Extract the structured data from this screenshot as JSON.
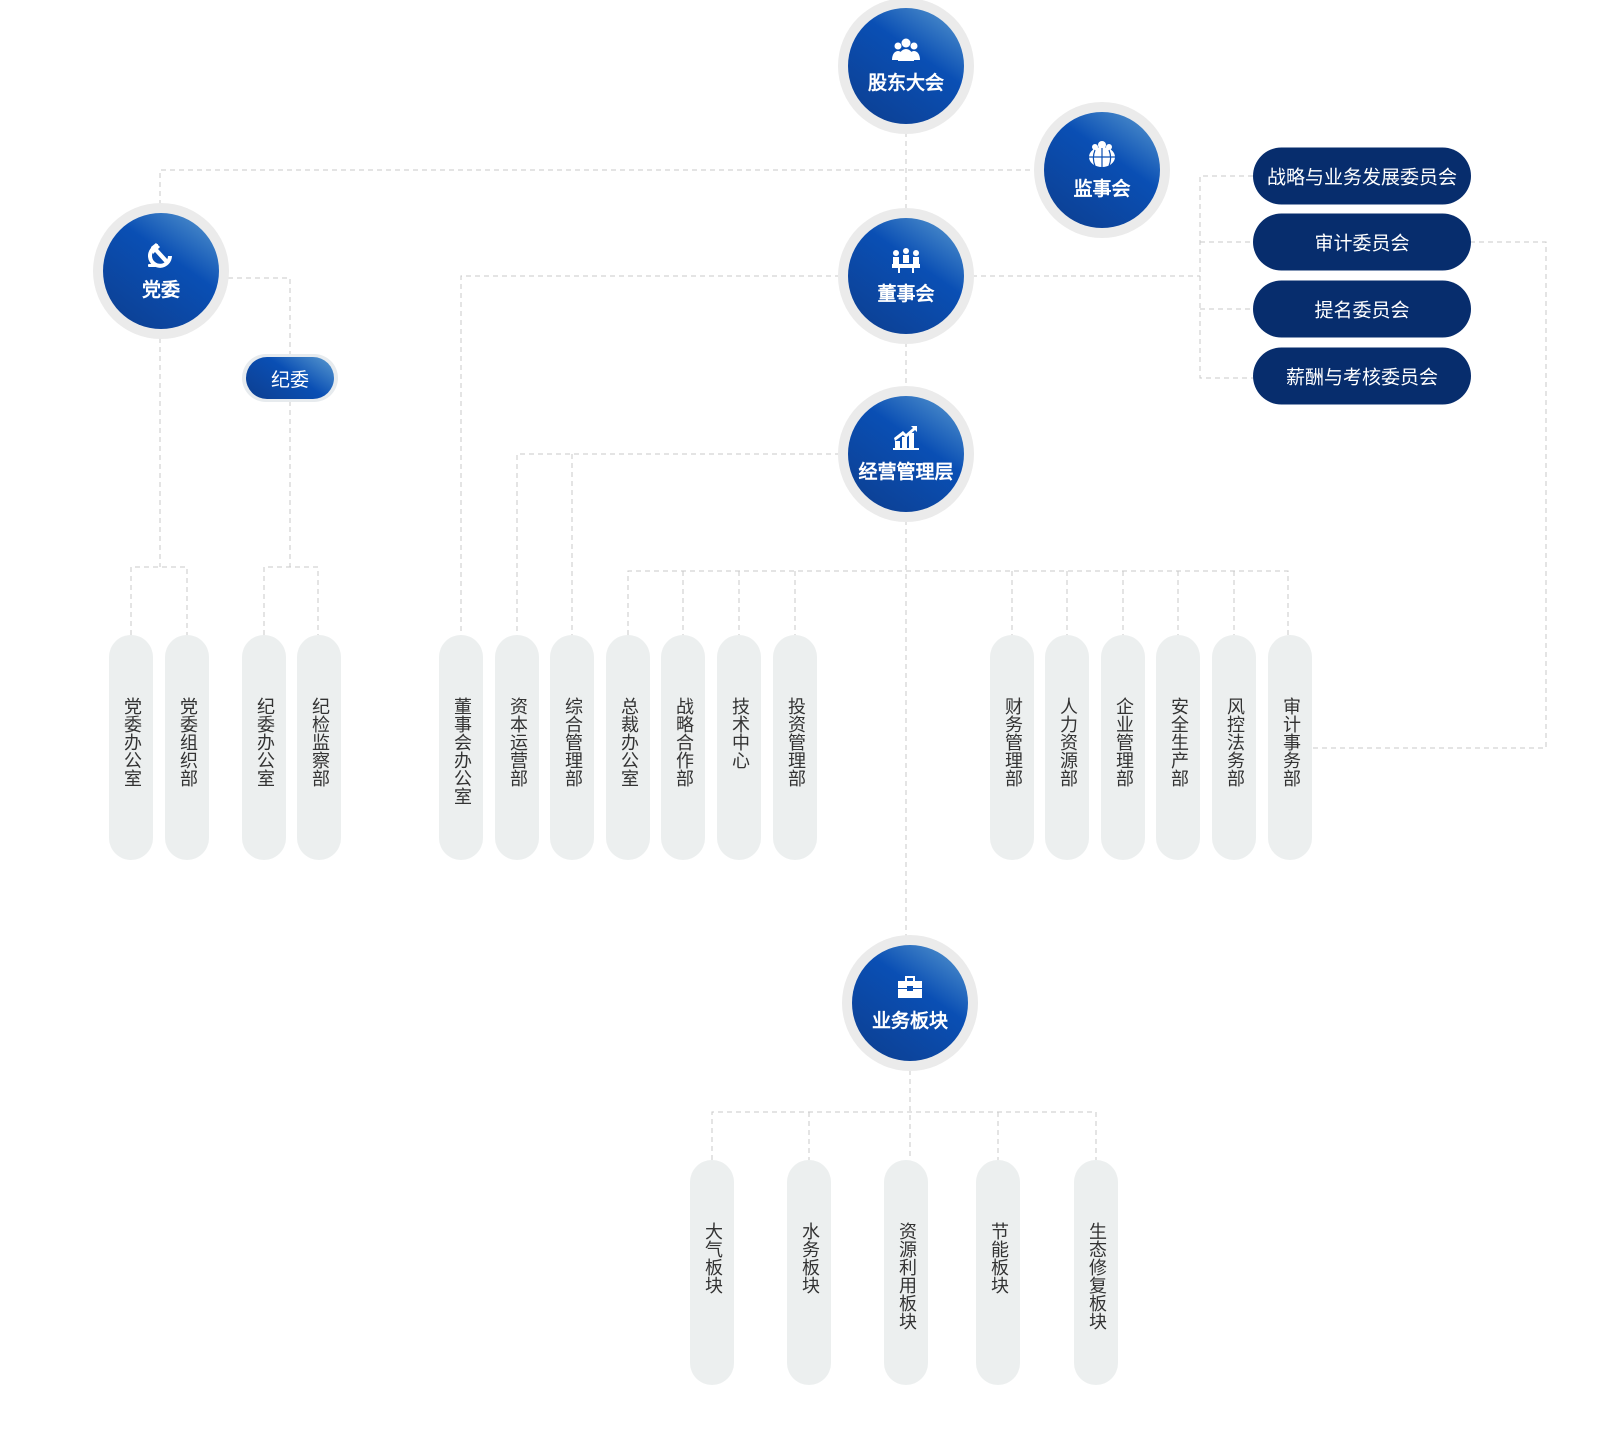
{
  "nodes": {
    "shareholders": {
      "label": "股东大会",
      "icon": "people-group-icon"
    },
    "supervisors": {
      "label": "监事会",
      "icon": "people-globe-icon"
    },
    "board": {
      "label": "董事会",
      "icon": "meeting-icon"
    },
    "party": {
      "label": "党委",
      "icon": "hammer-sickle-icon"
    },
    "discipline": {
      "label": "纪委"
    },
    "management": {
      "label": "经营管理层",
      "icon": "bar-chart-growth-icon"
    },
    "business": {
      "label": "业务板块",
      "icon": "briefcase-icon"
    }
  },
  "committees": [
    "战略与业务发展委员会",
    "审计委员会",
    "提名委员会",
    "薪酬与考核委员会"
  ],
  "party_depts": [
    "党委办公室",
    "党委组织部"
  ],
  "discipline_depts": [
    "纪委办公室",
    "纪检监察部"
  ],
  "board_depts": [
    "董事会办公室"
  ],
  "mgmt_left_depts": [
    "资本运营部",
    "综合管理部"
  ],
  "mgmt_depts_a": [
    "总裁办公室",
    "战略合作部",
    "技术中心",
    "投资管理部"
  ],
  "mgmt_depts_b": [
    "财务管理部",
    "人力资源部",
    "企业管理部",
    "安全生产部",
    "风控法务部",
    "审计事务部"
  ],
  "business_units": [
    "大气板块",
    "水务板块",
    "资源利用板块",
    "节能板块",
    "生态修复板块"
  ],
  "colors": {
    "disc": "#0a4fb4",
    "committee": "#072d6d",
    "dept_bg": "#ecefef",
    "line": "#c8c8c8"
  }
}
